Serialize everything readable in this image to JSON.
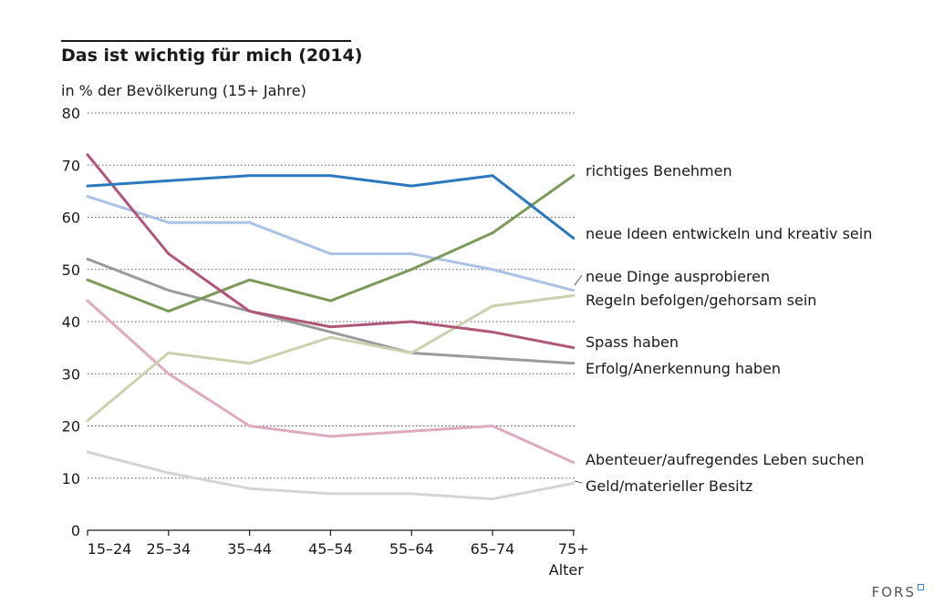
{
  "chart_data": {
    "type": "line",
    "title": "Das ist wichtig für mich (2014)",
    "ylabel": "in % der Bevölkerung (15+ Jahre)",
    "xlabel": "Alter",
    "ylim": [
      0,
      80
    ],
    "yticks": [
      0,
      10,
      20,
      30,
      40,
      50,
      60,
      70,
      80
    ],
    "categories": [
      "15–24",
      "25–34",
      "35–44",
      "45–54",
      "55–64",
      "65–74",
      "75+"
    ],
    "series": [
      {
        "name": "richtiges Benehmen",
        "color": "#7a9a58",
        "values": [
          48,
          42,
          48,
          44,
          50,
          57,
          68
        ]
      },
      {
        "name": "neue Ideen entwickeln und kreativ sein",
        "color": "#2a78be",
        "values": [
          66,
          67,
          68,
          68,
          66,
          68,
          56
        ]
      },
      {
        "name": "neue Dinge ausprobieren",
        "color": "#a8c3e3",
        "values": [
          64,
          59,
          59,
          53,
          53,
          50,
          46
        ]
      },
      {
        "name": "Regeln befolgen/gehorsam sein",
        "color": "#c9d2ac",
        "values": [
          21,
          34,
          32,
          37,
          34,
          43,
          45
        ]
      },
      {
        "name": "Spass haben",
        "color": "#b0567a",
        "values": [
          72,
          53,
          42,
          39,
          40,
          38,
          35
        ]
      },
      {
        "name": "Erfolg/Anerkennung haben",
        "color": "#9a9a9a",
        "values": [
          52,
          46,
          42,
          38,
          34,
          33,
          32
        ]
      },
      {
        "name": "Abenteuer/aufregendes Leben suchen",
        "color": "#dfaabf",
        "values": [
          44,
          30,
          20,
          18,
          19,
          20,
          13
        ]
      },
      {
        "name": "Geld/materieller Besitz",
        "color": "#d4d4d4",
        "values": [
          15,
          11,
          8,
          7,
          7,
          6,
          9
        ]
      }
    ]
  },
  "branding": {
    "logo_text": "FORS"
  }
}
